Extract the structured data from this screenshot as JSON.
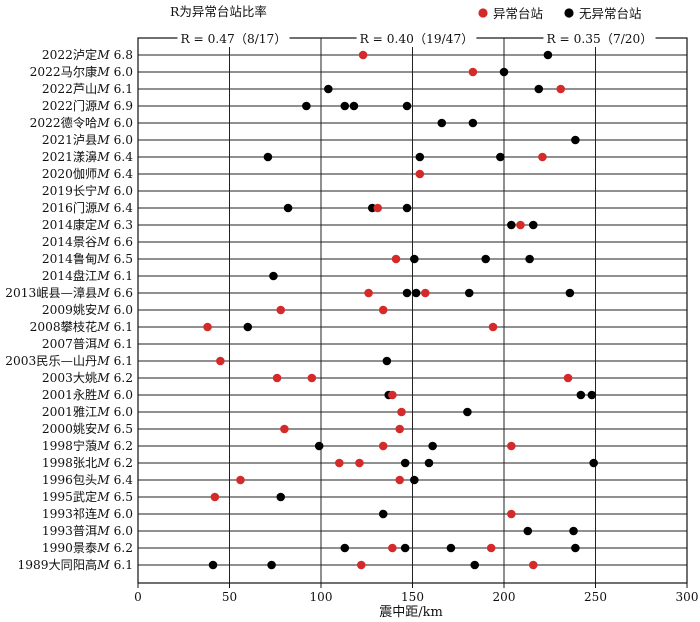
{
  "chart_data": {
    "type": "scatter",
    "title": "R为异常台站比率",
    "xlabel": "震中距/km",
    "xlim": [
      0,
      300
    ],
    "xticks": [
      0,
      50,
      100,
      150,
      200,
      250,
      300
    ],
    "legend": {
      "placement": "top-right",
      "entries": [
        {
          "label": "异常台站",
          "color": "#d42a2a"
        },
        {
          "label": "无异常台站",
          "color": "#000000"
        }
      ]
    },
    "zones": [
      {
        "x_start": 0,
        "x_end": 100,
        "label": "R = 0.47（8/17）"
      },
      {
        "x_start": 100,
        "x_end": 200,
        "label": "R = 0.40（19/47）"
      },
      {
        "x_start": 200,
        "x_end": 300,
        "label": "R = 0.35（7/20）"
      }
    ],
    "earthquakes": [
      {
        "label": "2022泸定M 6.8",
        "anomalous": [
          123
        ],
        "normal": [
          224
        ]
      },
      {
        "label": "2022马尔康M 6.0",
        "anomalous": [
          183
        ],
        "normal": [
          200
        ]
      },
      {
        "label": "2022芦山M 6.1",
        "anomalous": [
          231
        ],
        "normal": [
          104,
          219
        ]
      },
      {
        "label": "2022门源M 6.9",
        "anomalous": [],
        "normal": [
          92,
          113,
          118,
          147
        ]
      },
      {
        "label": "2022德令哈M 6.0",
        "anomalous": [],
        "normal": [
          166,
          183
        ]
      },
      {
        "label": "2021泸县M 6.0",
        "anomalous": [],
        "normal": [
          239
        ]
      },
      {
        "label": "2021漾濞M 6.4",
        "anomalous": [
          221
        ],
        "normal": [
          71,
          154,
          198
        ]
      },
      {
        "label": "2020伽师M 6.4",
        "anomalous": [
          154
        ],
        "normal": []
      },
      {
        "label": "2019长宁M 6.0",
        "anomalous": [],
        "normal": []
      },
      {
        "label": "2016门源M 6.4",
        "anomalous": [
          131
        ],
        "normal": [
          82,
          128,
          147
        ]
      },
      {
        "label": "2014康定M 6.3",
        "anomalous": [
          209
        ],
        "normal": [
          204,
          216
        ]
      },
      {
        "label": "2014景谷M 6.6",
        "anomalous": [],
        "normal": []
      },
      {
        "label": "2014鲁甸M 6.5",
        "anomalous": [
          141
        ],
        "normal": [
          151,
          190,
          214
        ]
      },
      {
        "label": "2014盘江M 6.1",
        "anomalous": [],
        "normal": [
          74
        ]
      },
      {
        "label": "2013岷县—漳县M 6.6",
        "anomalous": [
          126,
          157
        ],
        "normal": [
          147,
          152,
          181,
          236
        ]
      },
      {
        "label": "2009姚安M 6.0",
        "anomalous": [
          78,
          134
        ],
        "normal": []
      },
      {
        "label": "2008攀枝花M 6.1",
        "anomalous": [
          38,
          194
        ],
        "normal": [
          60
        ]
      },
      {
        "label": "2007普洱M 6.1",
        "anomalous": [],
        "normal": []
      },
      {
        "label": "2003民乐—山丹M 6.1",
        "anomalous": [
          45
        ],
        "normal": [
          136
        ]
      },
      {
        "label": "2003大姚M 6.2",
        "anomalous": [
          76,
          95,
          235
        ],
        "normal": []
      },
      {
        "label": "2001永胜M 6.0",
        "anomalous": [
          139
        ],
        "normal": [
          137,
          242,
          248
        ]
      },
      {
        "label": "2001雅江M 6.0",
        "anomalous": [
          144
        ],
        "normal": [
          180
        ]
      },
      {
        "label": "2000姚安M 6.5",
        "anomalous": [
          80,
          143
        ],
        "normal": []
      },
      {
        "label": "1998宁蒗M 6.2",
        "anomalous": [
          134,
          204
        ],
        "normal": [
          99,
          161
        ]
      },
      {
        "label": "1998张北M 6.2",
        "anomalous": [
          110,
          121
        ],
        "normal": [
          146,
          159,
          249
        ]
      },
      {
        "label": "1996包头M 6.4",
        "anomalous": [
          56,
          143
        ],
        "normal": [
          151
        ]
      },
      {
        "label": "1995武定M 6.5",
        "anomalous": [
          42
        ],
        "normal": [
          78
        ]
      },
      {
        "label": "1993祁连M 6.0",
        "anomalous": [
          204
        ],
        "normal": [
          134
        ]
      },
      {
        "label": "1993普洱M 6.0",
        "anomalous": [],
        "normal": [
          213,
          238
        ]
      },
      {
        "label": "1990景泰M 6.2",
        "anomalous": [
          139,
          193
        ],
        "normal": [
          113,
          146,
          171,
          239
        ]
      },
      {
        "label": "1989大同阳高M 6.1",
        "anomalous": [
          122,
          216
        ],
        "normal": [
          41,
          73,
          184
        ]
      }
    ]
  }
}
